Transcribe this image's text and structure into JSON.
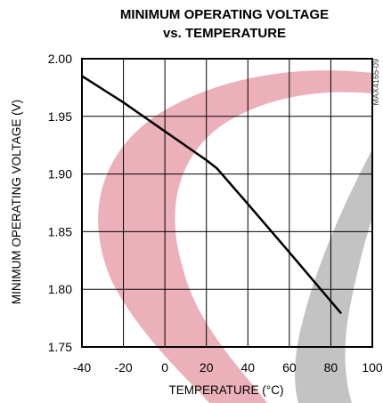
{
  "colors": {
    "curve": "#000000",
    "grid": "#000000",
    "watermark_red": "#e8a2ad",
    "watermark_gray": "#b8b8b8"
  },
  "chart_data": {
    "type": "line",
    "title": [
      "MINIMUM OPERATING VOLTAGE",
      "vs. TEMPERATURE"
    ],
    "xlabel": "TEMPERATURE (°C)",
    "ylabel": "MINIMUM OPERATING VOLTAGE (V)",
    "part_code": "MAX4165-09",
    "xlim": [
      -40,
      100
    ],
    "ylim": [
      1.75,
      2.0
    ],
    "x_ticks": [
      -40,
      -20,
      0,
      20,
      40,
      60,
      80,
      100
    ],
    "x_tick_labels": [
      "-40",
      "-20",
      "0",
      "20",
      "40",
      "60",
      "80",
      "100"
    ],
    "y_ticks": [
      1.75,
      1.8,
      1.85,
      1.9,
      1.95,
      2.0
    ],
    "y_tick_labels": [
      "1.75",
      "1.80",
      "1.85",
      "1.90",
      "1.95",
      "2.00"
    ],
    "grid": true,
    "series": [
      {
        "x": [
          -40,
          -20,
          0,
          20,
          25,
          40,
          60,
          85
        ],
        "y": [
          1.985,
          1.962,
          1.937,
          1.912,
          1.905,
          1.874,
          1.832,
          1.779
        ]
      }
    ]
  }
}
